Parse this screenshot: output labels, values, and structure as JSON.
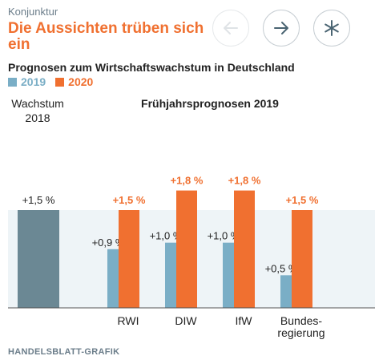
{
  "header": {
    "kicker": "Konjunktur",
    "title": "Die Aussichten trüben sich ein",
    "subtitle": "Prognosen zum Wirtschaftswachstum in Deutschland"
  },
  "nav": {
    "back_icon": "arrow-left-icon",
    "forward_icon": "arrow-right-icon",
    "star_icon": "asterisk-icon"
  },
  "colors": {
    "series_2019": "#7aaec6",
    "series_2020": "#f07030",
    "baseline": "#6b8894",
    "accent_text": "#f07030",
    "panel": "#eef4f7"
  },
  "footer": {
    "source": "HANDELSBLATT-GRAFIK"
  },
  "chart_data": {
    "type": "bar",
    "title": "Frühjahrsprognosen 2019",
    "ylim": [
      0,
      2.0
    ],
    "baseline": {
      "label_line1": "Wachstum",
      "label_line2": "2018",
      "value": 1.5,
      "value_label": "+1,5 %"
    },
    "categories": [
      "RWI",
      "DIW",
      "IfW",
      "Bundes-regierung"
    ],
    "category_lines": [
      [
        "RWI"
      ],
      [
        "DIW"
      ],
      [
        "IfW"
      ],
      [
        "Bundes-",
        "regierung"
      ]
    ],
    "series": [
      {
        "name": "2019",
        "values": [
          0.9,
          1.0,
          1.0,
          0.5
        ],
        "labels": [
          "+0,9 %",
          "+1,0 %",
          "+1,0 %",
          "+0,5 %"
        ]
      },
      {
        "name": "2020",
        "values": [
          1.5,
          1.8,
          1.8,
          1.5
        ],
        "labels": [
          "+1,5 %",
          "+1,8 %",
          "+1,8 %",
          "+1,5 %"
        ]
      }
    ]
  }
}
